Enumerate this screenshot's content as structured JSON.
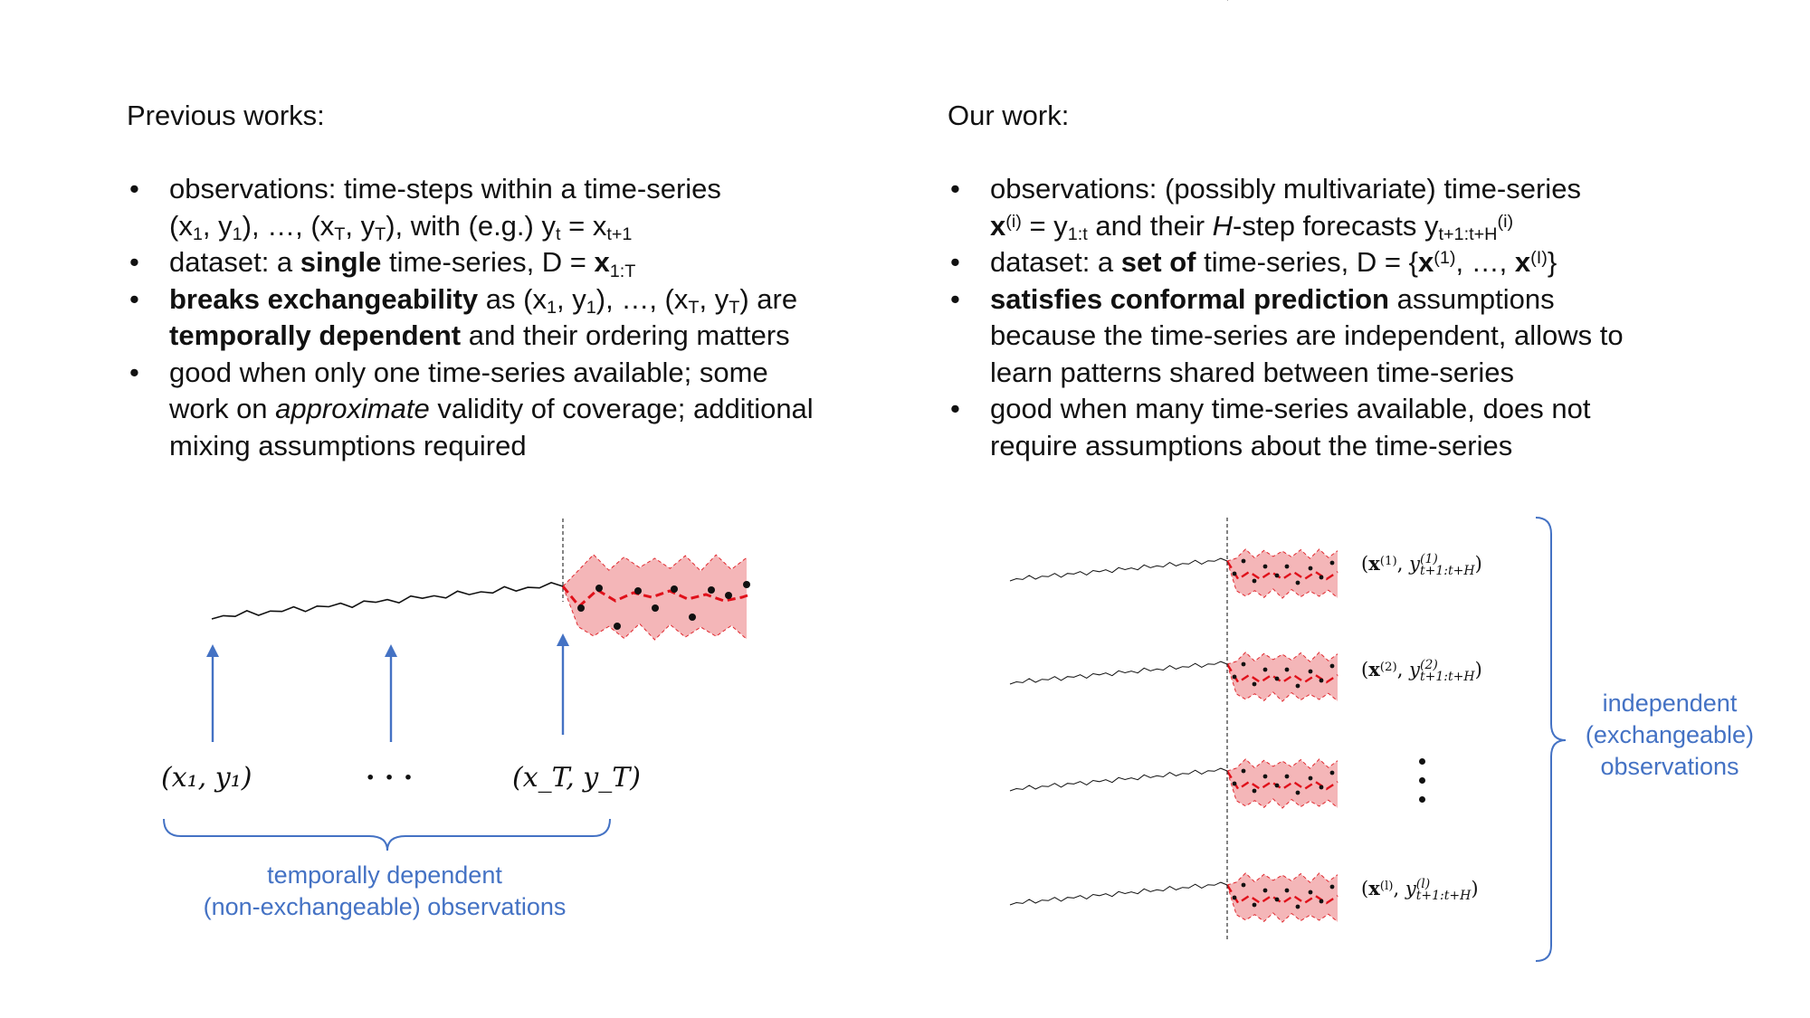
{
  "left": {
    "heading": "Previous works:",
    "bullets": [
      [
        {
          "t": "observations: time-steps within a time-series"
        },
        {
          "br": true
        },
        {
          "t": "(x"
        },
        {
          "sub": "1"
        },
        {
          "t": ", y"
        },
        {
          "sub": "1"
        },
        {
          "t": "), …, (x"
        },
        {
          "sub": "T"
        },
        {
          "t": ", y"
        },
        {
          "sub": "T"
        },
        {
          "t": "), with (e.g.) y"
        },
        {
          "sub": "t"
        },
        {
          "t": " = x"
        },
        {
          "sub": "t+1"
        }
      ],
      [
        {
          "t": "dataset: a "
        },
        {
          "b": "single"
        },
        {
          "t": " time-series, D = "
        },
        {
          "b": "x"
        },
        {
          "sub": "1:T"
        }
      ],
      [
        {
          "b": "breaks exchangeability"
        },
        {
          "t": " as (x"
        },
        {
          "sub": "1"
        },
        {
          "t": ", y"
        },
        {
          "sub": "1"
        },
        {
          "t": "), …, (x"
        },
        {
          "sub": "T"
        },
        {
          "t": ", y"
        },
        {
          "sub": "T"
        },
        {
          "t": ") are"
        },
        {
          "br": true
        },
        {
          "b": "temporally dependent"
        },
        {
          "t": " and their ordering matters"
        }
      ],
      [
        {
          "t": "good when only one time-series available; some"
        },
        {
          "br": true
        },
        {
          "t": "work on "
        },
        {
          "i": "approximate"
        },
        {
          "t": " validity of coverage; additional"
        },
        {
          "br": true
        },
        {
          "t": "mixing assumptions required"
        }
      ]
    ],
    "arrow_labels": [
      "(x₁, y₁)",
      "· · ·",
      "(x_T, y_T)"
    ],
    "caption_lines": [
      "temporally dependent",
      "(non-exchangeable) observations"
    ]
  },
  "right": {
    "heading": "Our work:",
    "bullets": [
      [
        {
          "t": "observations: (possibly multivariate) time-series"
        },
        {
          "br": true
        },
        {
          "b": "x"
        },
        {
          "sup": "(i)"
        },
        {
          "t": " = y"
        },
        {
          "sub": "1:t"
        },
        {
          "t": " and their "
        },
        {
          "i": "H"
        },
        {
          "t": "-step forecasts y"
        },
        {
          "sub": "t+1:t+H"
        },
        {
          "sup": "(i)"
        }
      ],
      [
        {
          "t": "dataset: a "
        },
        {
          "b": "set of"
        },
        {
          "t": " time-series, D = {"
        },
        {
          "b": "x"
        },
        {
          "sup": "(1)"
        },
        {
          "t": ", …, "
        },
        {
          "b": "x"
        },
        {
          "sup": "(I)"
        },
        {
          "t": "}"
        }
      ],
      [
        {
          "b": "satisfies conformal prediction"
        },
        {
          "t": " assumptions"
        },
        {
          "br": true
        },
        {
          "t": "because the time-series are independent, allows to"
        },
        {
          "br": true
        },
        {
          "t": "learn patterns shared between time-series"
        }
      ],
      [
        {
          "t": "good when many time-series available, does not"
        },
        {
          "br": true
        },
        {
          "t": "require assumptions about the time-series"
        }
      ]
    ],
    "series_labels": [
      {
        "x": "x",
        "sup": "(1)",
        "y": "y",
        "ysup": "(1)",
        "ysub": "t+1:t+H"
      },
      {
        "x": "x",
        "sup": "(2)",
        "y": "y",
        "ysup": "(2)",
        "ysub": "t+1:t+H"
      },
      {
        "dots": true
      },
      {
        "x": "x",
        "sup": "(l)",
        "y": "y",
        "ysup": "(l)",
        "ysub": "t+1:t+H"
      }
    ],
    "caption_lines": [
      "independent",
      "(exchangeable)",
      "observations"
    ]
  },
  "colors": {
    "text": "#111111",
    "accent_blue": "#4472c4",
    "band_fill": "#f4b6b8",
    "band_edge": "#e0292f",
    "forecast_line": "#e0101a",
    "history_line": "#111111"
  }
}
